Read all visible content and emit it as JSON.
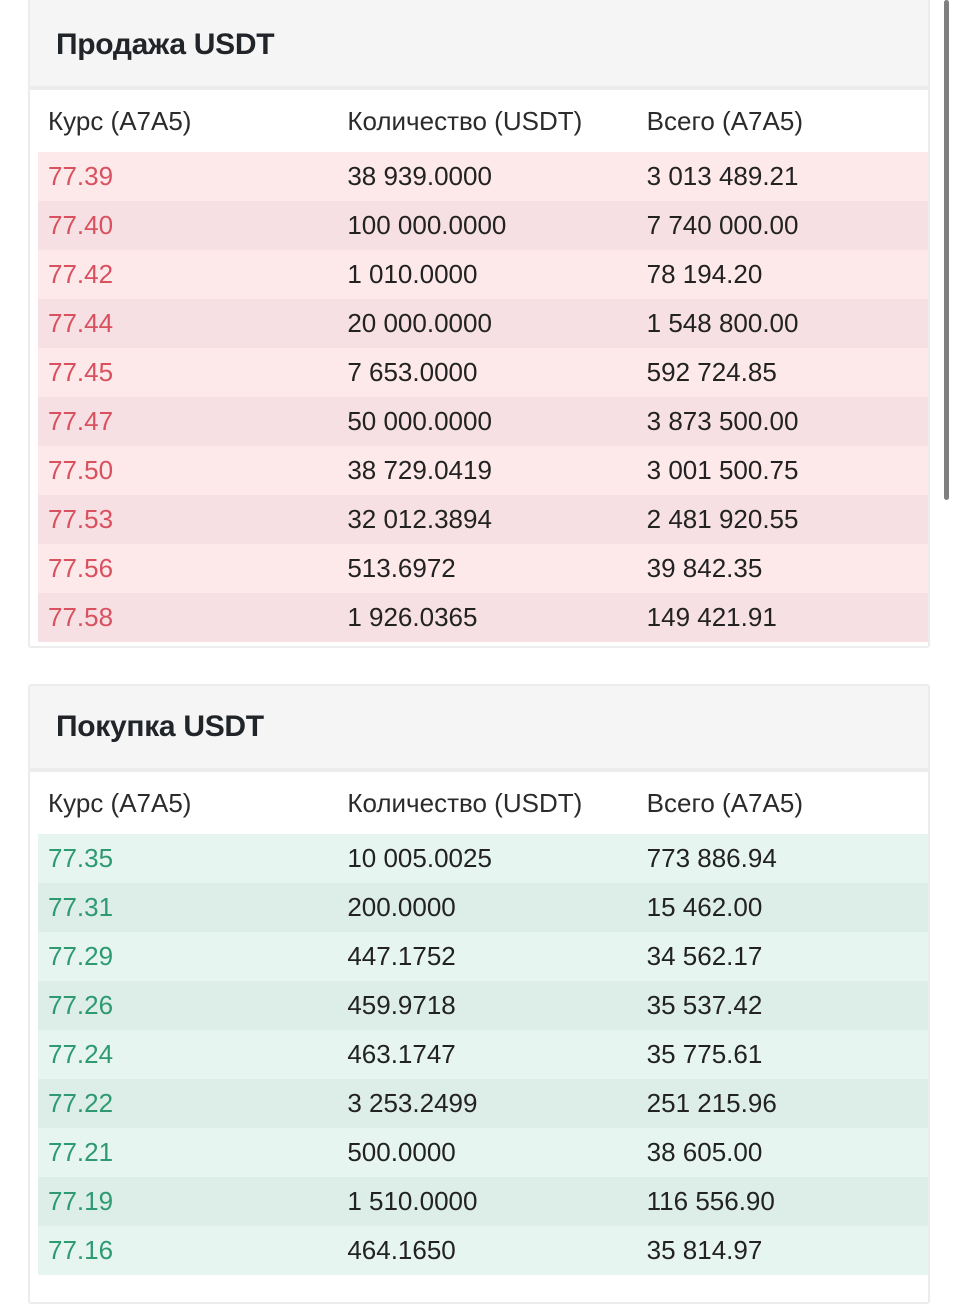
{
  "sell": {
    "title": "Продажа USDT",
    "headers": [
      "Курс (A7A5)",
      "Количество (USDT)",
      "Всего (A7A5)"
    ],
    "price_color": "#d9505f",
    "rows": [
      {
        "price": "77.39",
        "amount": "38 939.0000",
        "total": "3 013 489.21"
      },
      {
        "price": "77.40",
        "amount": "100 000.0000",
        "total": "7 740 000.00"
      },
      {
        "price": "77.42",
        "amount": "1 010.0000",
        "total": "78 194.20"
      },
      {
        "price": "77.44",
        "amount": "20 000.0000",
        "total": "1 548 800.00"
      },
      {
        "price": "77.45",
        "amount": "7 653.0000",
        "total": "592 724.85"
      },
      {
        "price": "77.47",
        "amount": "50 000.0000",
        "total": "3 873 500.00"
      },
      {
        "price": "77.50",
        "amount": "38 729.0419",
        "total": "3 001 500.75"
      },
      {
        "price": "77.53",
        "amount": "32 012.3894",
        "total": "2 481 920.55"
      },
      {
        "price": "77.56",
        "amount": "513.6972",
        "total": "39 842.35"
      },
      {
        "price": "77.58",
        "amount": "1 926.0365",
        "total": "149 421.91"
      }
    ]
  },
  "buy": {
    "title": "Покупка USDT",
    "headers": [
      "Курс (A7A5)",
      "Количество (USDT)",
      "Всего (A7A5)"
    ],
    "price_color": "#2e9a72",
    "rows": [
      {
        "price": "77.35",
        "amount": "10 005.0025",
        "total": "773 886.94"
      },
      {
        "price": "77.31",
        "amount": "200.0000",
        "total": "15 462.00"
      },
      {
        "price": "77.29",
        "amount": "447.1752",
        "total": "34 562.17"
      },
      {
        "price": "77.26",
        "amount": "459.9718",
        "total": "35 537.42"
      },
      {
        "price": "77.24",
        "amount": "463.1747",
        "total": "35 775.61"
      },
      {
        "price": "77.22",
        "amount": "3 253.2499",
        "total": "251 215.96"
      },
      {
        "price": "77.21",
        "amount": "500.0000",
        "total": "38 605.00"
      },
      {
        "price": "77.19",
        "amount": "1 510.0000",
        "total": "116 556.90"
      },
      {
        "price": "77.16",
        "amount": "464.1650",
        "total": "35 814.97"
      }
    ]
  }
}
